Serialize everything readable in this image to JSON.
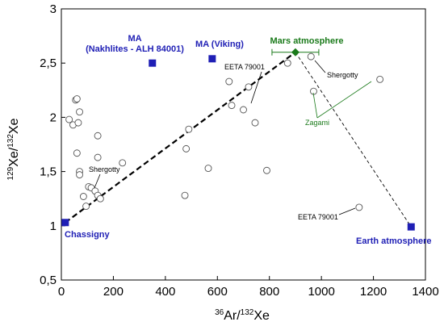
{
  "chart_data": {
    "type": "scatter",
    "xlim": [
      0,
      1400
    ],
    "ylim": [
      0.5,
      3
    ],
    "xticks": [
      "0",
      "200",
      "400",
      "600",
      "800",
      "1000",
      "1200",
      "1400"
    ],
    "yticks": [
      "0,5",
      "1",
      "1,5",
      "2",
      "2,5",
      "3"
    ],
    "xlabel": {
      "sup": "36",
      "main": "Ar/",
      "sup2": "132",
      "tail": "Xe"
    },
    "ylabel": {
      "sup": "129",
      "main": "Xe/",
      "sup2": "132",
      "tail": "Xe"
    },
    "meteorite_points": [
      [
        30,
        1.98
      ],
      [
        45,
        1.93
      ],
      [
        55,
        2.16
      ],
      [
        60,
        2.17
      ],
      [
        60,
        1.67
      ],
      [
        65,
        1.95
      ],
      [
        70,
        2.05
      ],
      [
        70,
        1.5
      ],
      [
        70,
        1.47
      ],
      [
        85,
        1.27
      ],
      [
        95,
        1.18
      ],
      [
        105,
        1.36
      ],
      [
        115,
        1.35
      ],
      [
        130,
        1.32
      ],
      [
        140,
        1.28
      ],
      [
        150,
        1.25
      ],
      [
        140,
        1.83
      ],
      [
        140,
        1.63
      ],
      [
        235,
        1.58
      ],
      [
        475,
        1.28
      ],
      [
        480,
        1.71
      ],
      [
        490,
        1.89
      ],
      [
        565,
        1.53
      ],
      [
        645,
        2.33
      ],
      [
        655,
        2.11
      ],
      [
        700,
        2.07
      ],
      [
        720,
        2.28
      ],
      [
        745,
        1.95
      ],
      [
        790,
        1.51
      ],
      [
        870,
        2.5
      ],
      [
        960,
        2.56
      ],
      [
        970,
        2.24
      ],
      [
        1145,
        1.17
      ],
      [
        1225,
        2.35
      ]
    ],
    "reservoirs": [
      {
        "label": "Chassigny",
        "x": 15,
        "y": 1.03,
        "color": "#1f1fb5"
      },
      {
        "label": "MA (Nakhlites - ALH 84001)",
        "x": 350,
        "y": 2.5,
        "color": "#1f1fb5"
      },
      {
        "label": "MA (Viking)",
        "x": 580,
        "y": 2.54,
        "color": "#1f1fb5"
      },
      {
        "label": "Earth atmosphere",
        "x": 1345,
        "y": 0.99,
        "color": "#1f1fb5"
      }
    ],
    "mars_atmosphere": {
      "label": "Mars atmosphere",
      "x": 900,
      "y": 2.6,
      "xerr": 90,
      "color": "#1a7a1a"
    },
    "trend_lines": [
      {
        "from": [
          15,
          1.03
        ],
        "to": [
          900,
          2.6
        ],
        "style": "bold-dashed"
      },
      {
        "from": [
          900,
          2.6
        ],
        "to": [
          1345,
          0.99
        ],
        "style": "thin-dashed"
      }
    ],
    "annotations": [
      {
        "text": "Shergotty",
        "where": "upper-right"
      },
      {
        "text": "Shergotty",
        "where": "lower-left"
      },
      {
        "text": "EETA 79001",
        "where": "upper-middle"
      },
      {
        "text": "EETA 79001",
        "where": "lower-right"
      },
      {
        "text": "Zagami",
        "where": "right"
      }
    ],
    "label_texts": {
      "chassigny": "Chassigny",
      "ma_nakhlites_1": "MA",
      "ma_nakhlites_2": "(Nakhlites - ALH 84001)",
      "ma_viking": "MA (Viking)",
      "mars_atmosphere": "Mars atmosphere",
      "earth_atmosphere": "Earth atmosphere",
      "shergotty": "Shergotty",
      "eeta": "EETA 79001",
      "zagami": "Zagami"
    }
  }
}
